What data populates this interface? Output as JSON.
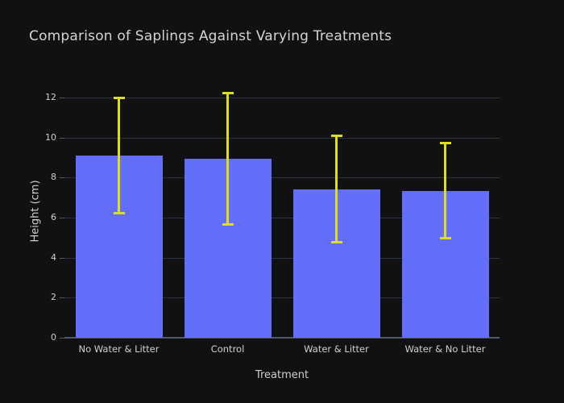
{
  "chart_data": {
    "type": "bar",
    "title": "Comparison of Saplings Against Varying Treatments",
    "xlabel": "Treatment",
    "ylabel": "Height (cm)",
    "categories": [
      "No Water & Litter",
      "Control",
      "Water & Litter",
      "Water & No Litter"
    ],
    "values": [
      9.1,
      8.93,
      7.42,
      7.35
    ],
    "error_y": [
      2.9,
      3.3,
      2.68,
      2.4
    ],
    "yticks": [
      0,
      2,
      4,
      6,
      8,
      10,
      12
    ],
    "ylim": [
      0,
      12.65
    ],
    "grid": true,
    "legend_position": "none",
    "colors": {
      "bar": "#636efa",
      "error_bar": "#dce010",
      "background": "#111111",
      "gridline": "#283442",
      "axis_line": "#4f5b6b",
      "text": "#d4d4d4"
    }
  }
}
